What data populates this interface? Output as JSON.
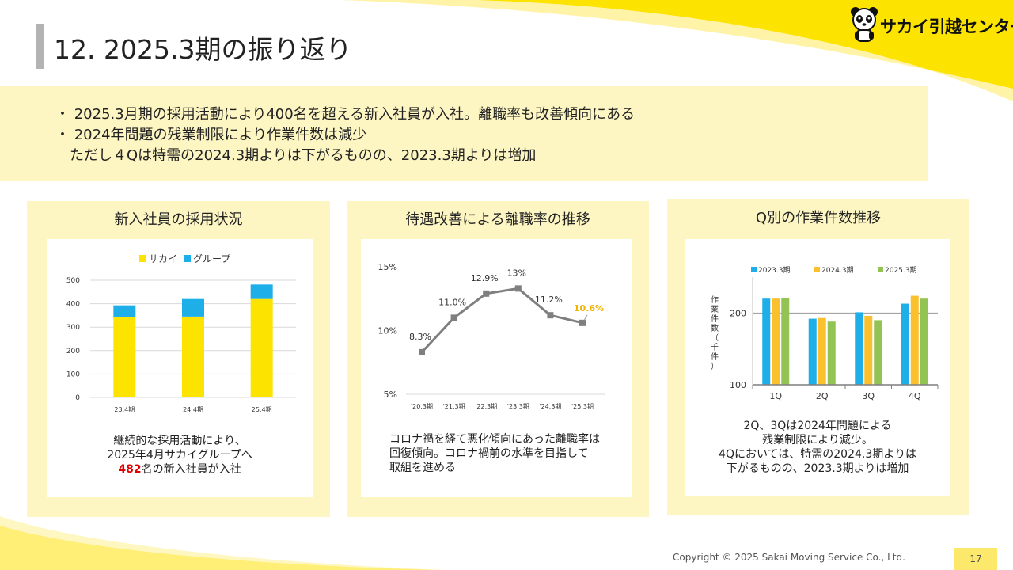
{
  "slide": {
    "title": "12. 2025.3期の振り返り",
    "logo_text": "サカイ引越センター",
    "logo_icon": "panda-icon",
    "accent_color": "#fde300",
    "summary_lines": [
      "・ 2025.3月期の採用活動により400名を超える新入社員が入社。離職率も改善傾向にある",
      "・ 2024年問題の残業制限により作業件数は減少",
      "ただし４Qは特需の2024.3期よりは下がるものの、2023.3期よりは増加"
    ],
    "footer": "Copyright © 2025 Sakai Moving Service Co., Ltd.",
    "page_number": "17"
  },
  "panels": {
    "recruit": {
      "title": "新入社員の採用状況",
      "caption_line1": "継続的な採用活動により、",
      "caption_line2": "2025年4月サカイグループへ",
      "caption_highlight": "482",
      "caption_line3_rest": "名の新入社員が入社"
    },
    "turnover": {
      "title": "待遇改善による離職率の推移",
      "caption_lines": [
        "コロナ禍を経て悪化傾向にあった離職率は",
        "回復傾向。コロナ禍前の水準を目指して",
        "取組を進める"
      ]
    },
    "workload": {
      "title": "Q別の作業件数推移",
      "caption_lines": [
        "2Q、3Qは2024年問題による",
        "残業制限により減少。",
        "4Qにおいては、特需の2024.3期よりは",
        "下がるものの、2023.3期よりは増加"
      ]
    }
  },
  "chart_data": [
    {
      "type": "bar",
      "stacked": true,
      "categories": [
        "23.4期",
        "24.4期",
        "25.4期"
      ],
      "series": [
        {
          "name": "サカイ",
          "color": "#fde300",
          "values": [
            344,
            345,
            420
          ]
        },
        {
          "name": "グループ",
          "color": "#1eaee8",
          "values": [
            49,
            75,
            62
          ]
        }
      ],
      "ylim": [
        0,
        500
      ],
      "yticks": [
        0,
        100,
        200,
        300,
        400,
        500
      ],
      "grid": true,
      "legend": "top-center"
    },
    {
      "type": "line",
      "categories": [
        "'20.3期",
        "'21.3期",
        "'22.3期",
        "'23.3期",
        "'24.3期",
        "'25.3期"
      ],
      "values": [
        8.3,
        11.0,
        12.9,
        13.3,
        11.2,
        10.6
      ],
      "data_labels": [
        "8.3%",
        "11.0%",
        "12.9%",
        "13%",
        "11.2%",
        "10.6%"
      ],
      "yticks": [
        "5%",
        "10%",
        "15%"
      ],
      "ylim": [
        5,
        15
      ],
      "line_color": "#7f7f7f",
      "highlight_color": "#f0b400",
      "grid": false
    },
    {
      "type": "bar",
      "categories": [
        "1Q",
        "2Q",
        "3Q",
        "4Q"
      ],
      "series": [
        {
          "name": "2023.3期",
          "color": "#1eaee8",
          "values": [
            220,
            192,
            201,
            213
          ]
        },
        {
          "name": "2024.3期",
          "color": "#fbc02d",
          "values": [
            220,
            193,
            196,
            224
          ]
        },
        {
          "name": "2025.3期",
          "color": "#92c353",
          "values": [
            221,
            188,
            190,
            220
          ]
        }
      ],
      "ylabel": "作業件数（千件）",
      "ylim": [
        100,
        250
      ],
      "yticks": [
        100,
        200
      ],
      "grid": true,
      "legend": "top-center"
    }
  ]
}
